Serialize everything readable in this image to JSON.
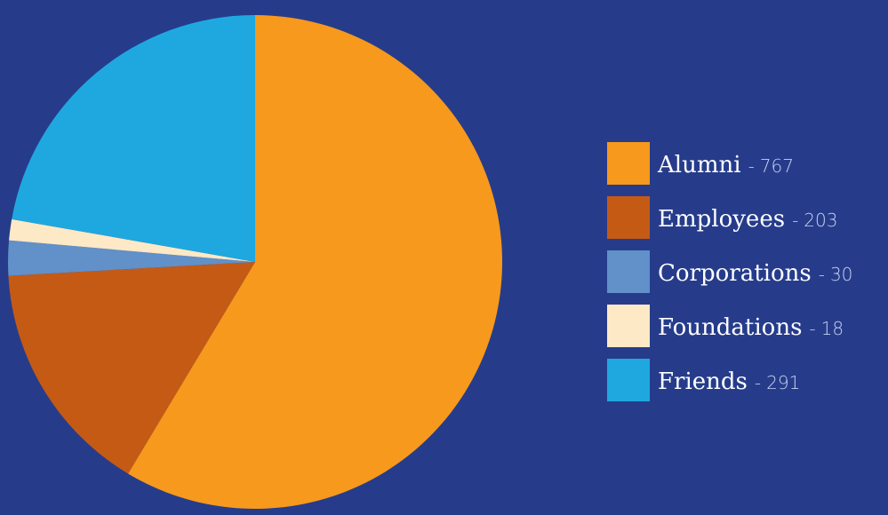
{
  "chart_data": {
    "type": "pie",
    "categories": [
      "Alumni",
      "Employees",
      "Corporations",
      "Foundations",
      "Friends"
    ],
    "values": [
      767,
      203,
      30,
      18,
      291
    ],
    "colors": [
      "#f7991c",
      "#c55a15",
      "#6290c8",
      "#fde9c5",
      "#1fa8e0"
    ],
    "legend_separator": "-",
    "legend": "right"
  }
}
